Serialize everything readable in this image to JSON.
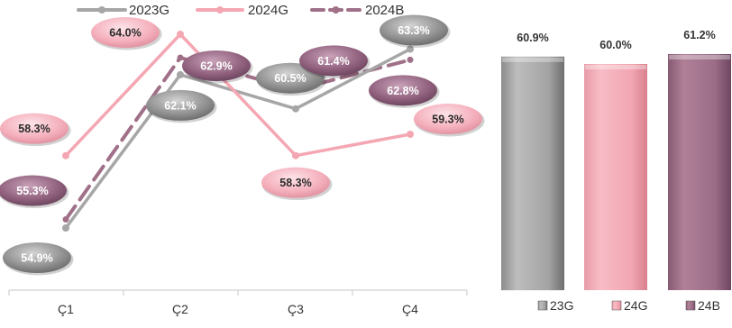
{
  "colors": {
    "g23": "#a6a6a6",
    "g24": "#f4a7b2",
    "b24": "#a07088",
    "label_g23": "#8c8c8c",
    "label_g24": "#f5b4c0",
    "label_b24": "#8f5f7c",
    "axis": "#d0d0d0",
    "text": "#333333"
  },
  "chart_data": [
    {
      "type": "line",
      "categories": [
        "Ç1",
        "Ç2",
        "Ç3",
        "Ç4"
      ],
      "series": [
        {
          "name": "2023G",
          "key": "g23",
          "style": "solid",
          "values": [
            54.9,
            62.1,
            60.5,
            63.3
          ],
          "labels": [
            "54.9%",
            "62.1%",
            "60.5%",
            "63.3%"
          ]
        },
        {
          "name": "2024G",
          "key": "g24",
          "style": "solid",
          "values": [
            58.3,
            64.0,
            58.3,
            59.3
          ],
          "labels": [
            "58.3%",
            "64.0%",
            "58.3%",
            "59.3%"
          ]
        },
        {
          "name": "2024B",
          "key": "b24",
          "style": "dashed",
          "values": [
            55.3,
            62.9,
            61.4,
            62.8
          ],
          "labels": [
            "55.3%",
            "62.9%",
            "61.4%",
            "62.8%"
          ]
        }
      ],
      "ylim": [
        54,
        65
      ],
      "legend_position": "top",
      "grid": false
    },
    {
      "type": "bar",
      "series": [
        {
          "name": "23G",
          "key": "g23",
          "value": 60.9,
          "label": "60.9%"
        },
        {
          "name": "24G",
          "key": "g24",
          "value": 60.0,
          "label": "60.0%"
        },
        {
          "name": "24B",
          "key": "b24",
          "value": 61.2,
          "label": "61.2%"
        }
      ],
      "legend_position": "bottom",
      "grid": false
    }
  ]
}
